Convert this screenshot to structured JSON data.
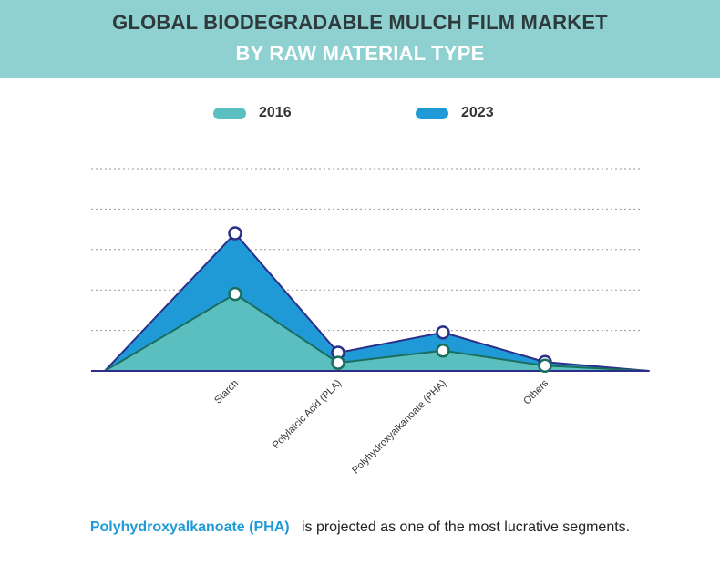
{
  "header": {
    "title_line1": "GLOBAL BIODEGRADABLE MULCH FILM MARKET",
    "title_line2": "BY RAW MATERIAL TYPE",
    "background": "#8fd1d1"
  },
  "legend": [
    {
      "label": "2016",
      "color": "#5bbfbf"
    },
    {
      "label": "2023",
      "color": "#1f9ad6"
    }
  ],
  "chart_data": {
    "type": "area",
    "title": "",
    "xlabel": "",
    "ylabel": "",
    "categories": [
      "Starch",
      "Polylatcic Acid (PLA)",
      "Polyhydroxyalkanoate (PHA)",
      "Others"
    ],
    "series": [
      {
        "name": "2016",
        "values": [
          1.9,
          0.2,
          0.5,
          0.13
        ],
        "color": "#5bbfbf",
        "line": "#1b6e5e"
      },
      {
        "name": "2023",
        "values": [
          3.4,
          0.45,
          0.95,
          0.22
        ],
        "color": "#1f9ad6",
        "line": "#2c2f8a"
      }
    ],
    "ylim": [
      0,
      5
    ],
    "grid": true,
    "legend_position": "top"
  },
  "footer": {
    "highlight": "Polyhydroxyalkanoate (PHA)",
    "text": "is projected as one of the most lucrative segments."
  }
}
